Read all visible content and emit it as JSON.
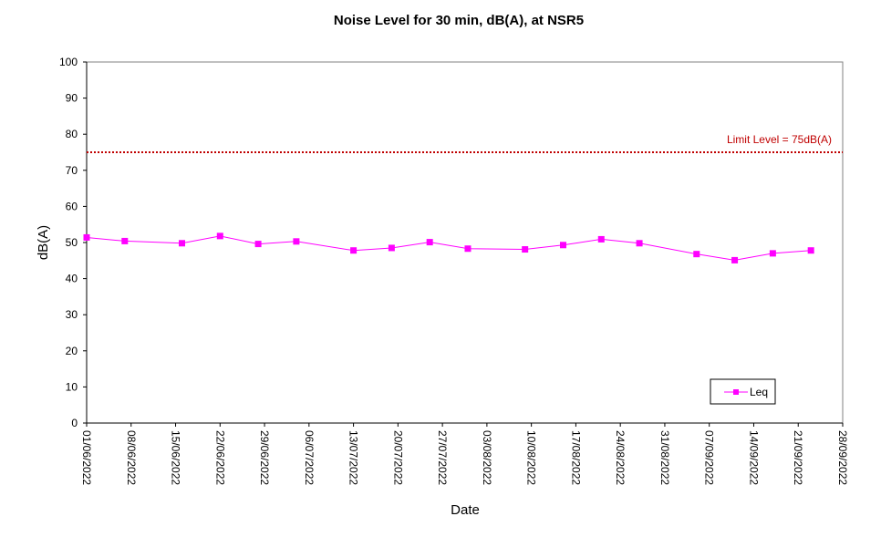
{
  "chart_data": {
    "type": "line",
    "title": "Noise Level for 30 min, dB(A), at NSR5",
    "xlabel": "Date",
    "ylabel": "dB(A)",
    "ylim": [
      0,
      100
    ],
    "yticks": [
      0,
      10,
      20,
      30,
      40,
      50,
      60,
      70,
      80,
      90,
      100
    ],
    "xlim": [
      "2022-06-01",
      "2022-09-28"
    ],
    "xtick_labels": [
      "01/06/2022",
      "08/06/2022",
      "15/06/2022",
      "22/06/2022",
      "29/06/2022",
      "06/07/2022",
      "13/07/2022",
      "20/07/2022",
      "27/07/2022",
      "03/08/2022",
      "10/08/2022",
      "17/08/2022",
      "24/08/2022",
      "31/08/2022",
      "07/09/2022",
      "14/09/2022",
      "21/09/2022",
      "28/09/2022"
    ],
    "grid": false,
    "legend_position": "bottom-right",
    "limit_line": {
      "value": 75,
      "label": "Limit Level  = 75dB(A)",
      "color": "#c00000",
      "style": "dotted"
    },
    "series": [
      {
        "name": "Leq",
        "color": "#ff00ff",
        "marker": "square",
        "x": [
          "2022-06-01",
          "2022-06-07",
          "2022-06-16",
          "2022-06-22",
          "2022-06-28",
          "2022-07-04",
          "2022-07-13",
          "2022-07-19",
          "2022-07-25",
          "2022-07-31",
          "2022-08-09",
          "2022-08-15",
          "2022-08-21",
          "2022-08-27",
          "2022-09-05",
          "2022-09-11",
          "2022-09-17",
          "2022-09-23"
        ],
        "y": [
          51.4,
          50.4,
          49.8,
          51.8,
          49.6,
          50.3,
          47.8,
          48.5,
          50.1,
          48.3,
          48.1,
          49.3,
          50.9,
          49.8,
          46.8,
          45.1,
          47.0,
          47.8
        ]
      }
    ]
  }
}
